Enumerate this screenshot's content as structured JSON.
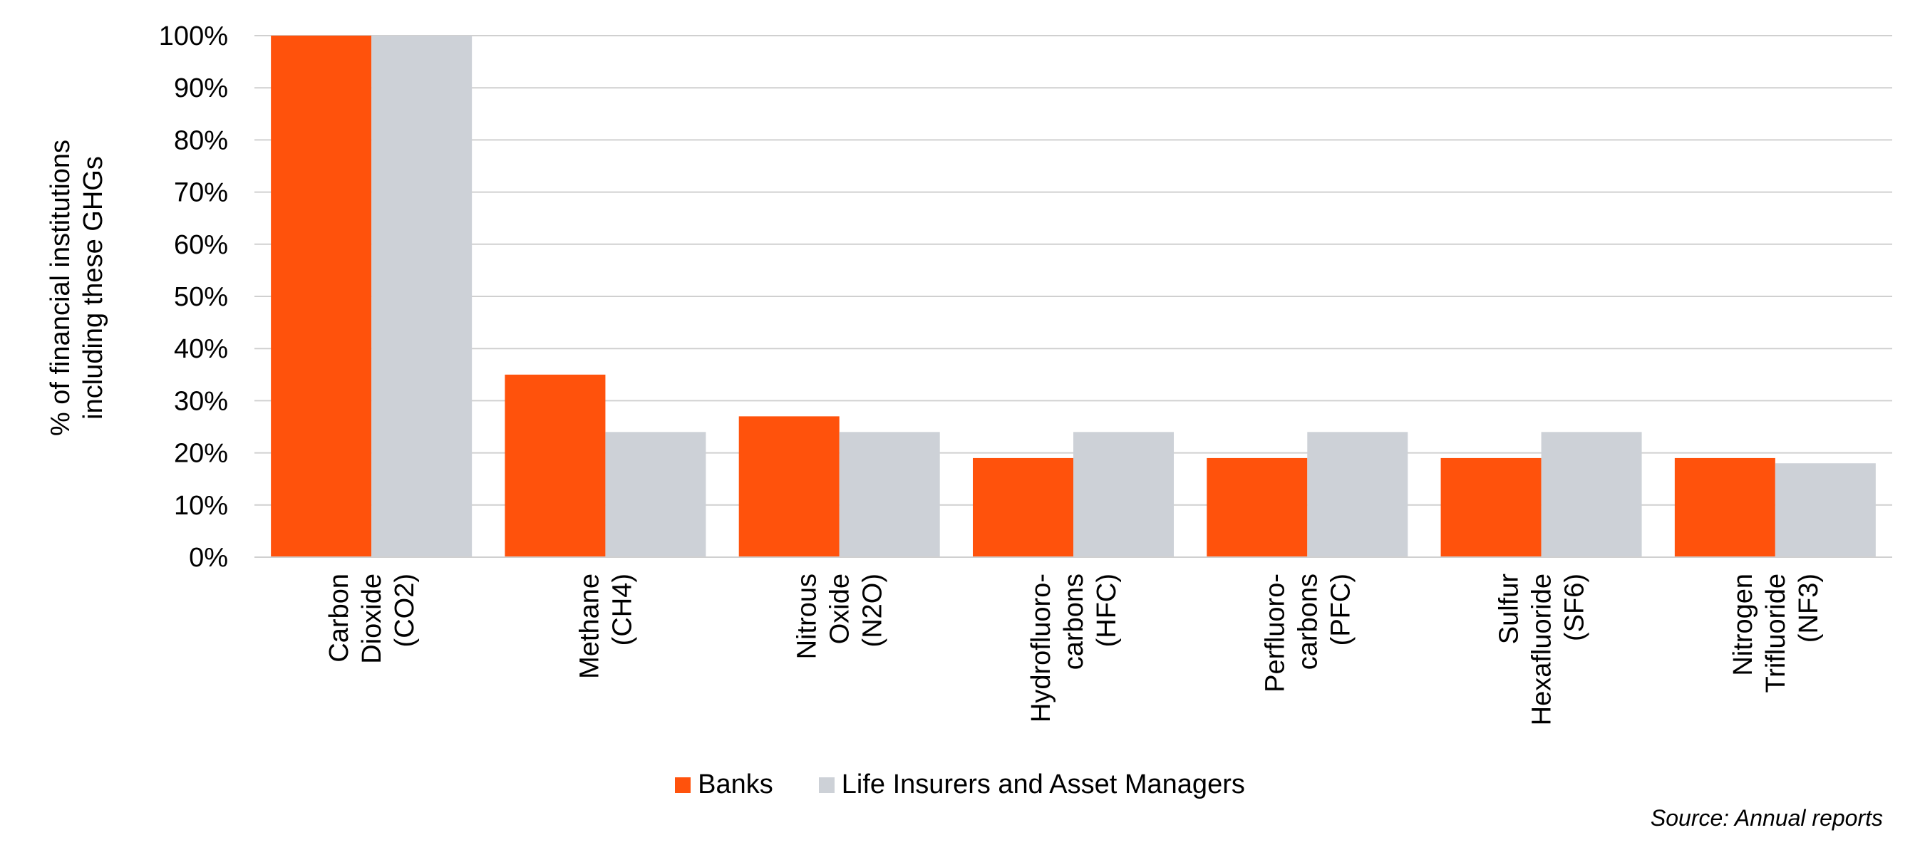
{
  "chart_data": {
    "type": "bar",
    "title": "",
    "ylabel": [
      "% of financial institutions",
      "including these GHGs"
    ],
    "xlabel": "",
    "ylim": [
      0,
      100
    ],
    "yticks": [
      0,
      10,
      20,
      30,
      40,
      50,
      60,
      70,
      80,
      90,
      100
    ],
    "ytick_suffix": "%",
    "grid": true,
    "legend_placement": "bottom-center",
    "categories": [
      [
        "Carbon",
        "Dioxide",
        "(CO2)"
      ],
      [
        "Methane",
        "(CH4)"
      ],
      [
        "Nitrous",
        "Oxide",
        "(N2O)"
      ],
      [
        "Hydrofluoro-",
        "carbons",
        "(HFC)"
      ],
      [
        "Perfluoro-",
        "carbons",
        "(PFC)"
      ],
      [
        "Sulfur",
        "Hexafluoride",
        "(SF6)"
      ],
      [
        "Nitrogen",
        "Trifluoride",
        "(NF3)"
      ]
    ],
    "series": [
      {
        "name": "Banks",
        "color": "#FF520C",
        "values": [
          100,
          35,
          27,
          19,
          19,
          19,
          19
        ]
      },
      {
        "name": "Life Insurers and Asset Managers",
        "color": "#CDD1D7",
        "values": [
          100,
          24,
          24,
          24,
          24,
          24,
          18
        ]
      }
    ],
    "source": "Source: Annual reports"
  }
}
